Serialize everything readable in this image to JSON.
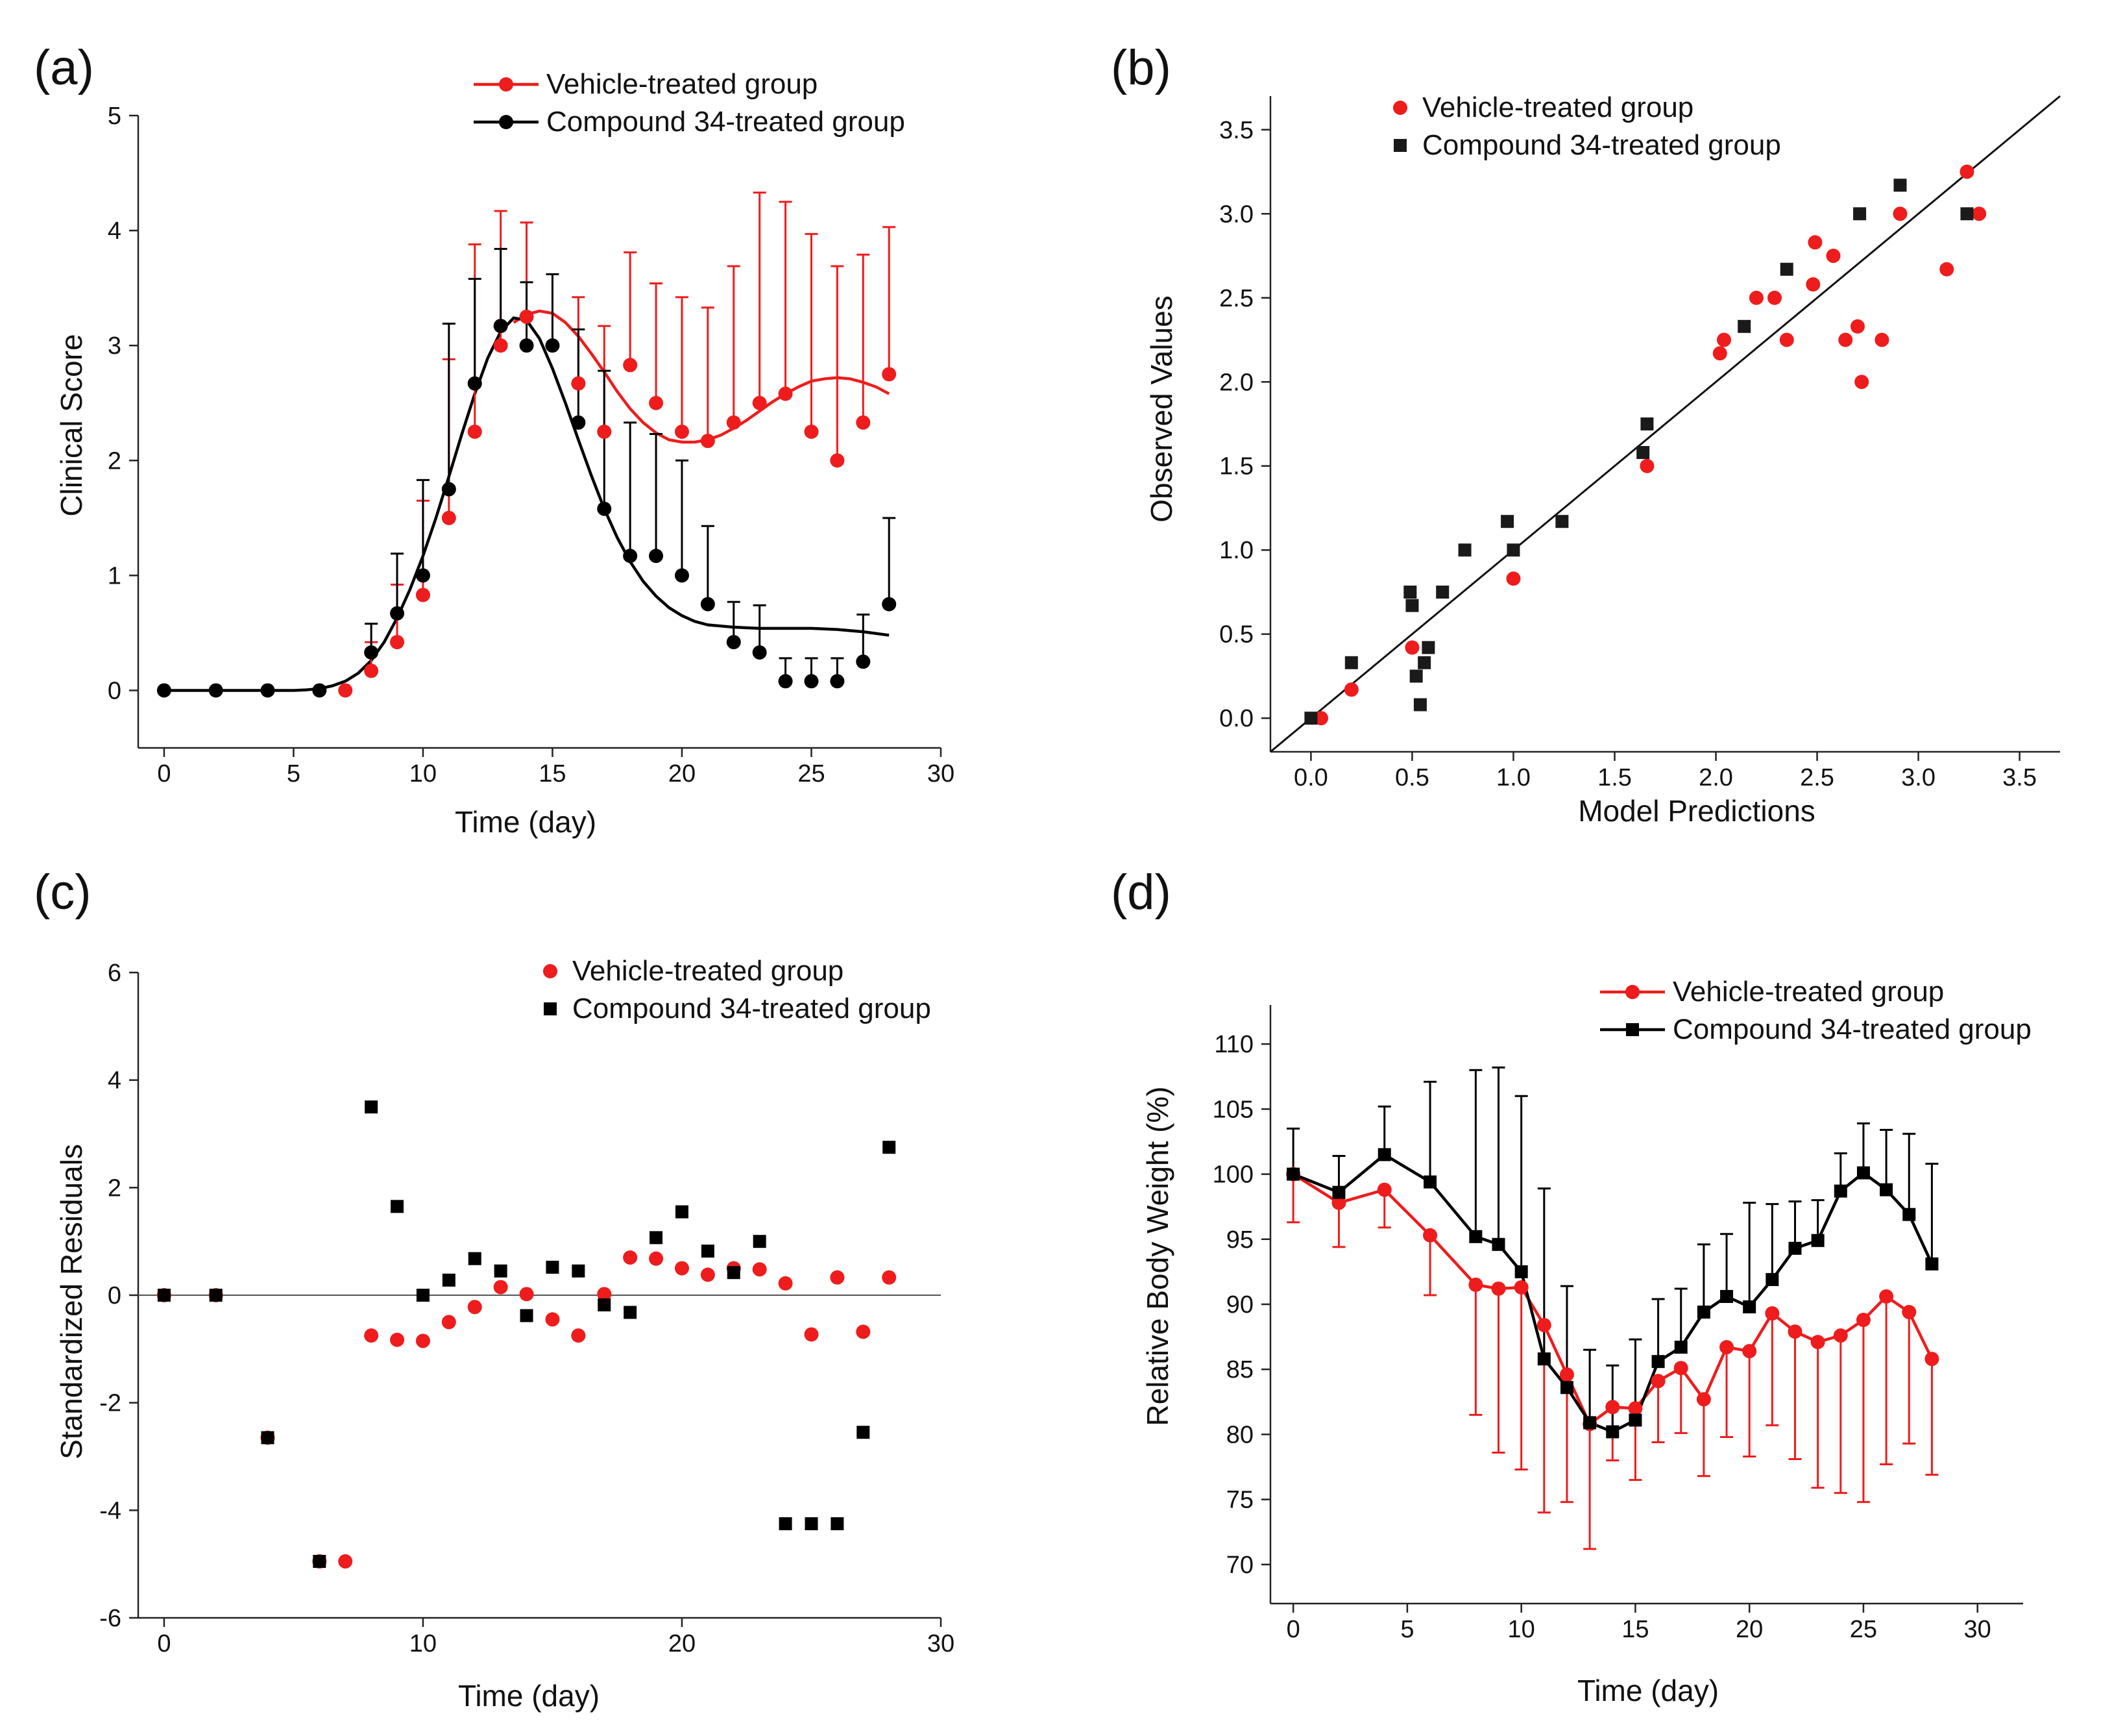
{
  "figure": {
    "colors": {
      "vehicle": "#ee1c1c",
      "compound": "#000000"
    }
  },
  "chart_data": [
    {
      "id": "a",
      "panel_label": "(a)",
      "type": "scatter",
      "xlabel": "Time (day)",
      "ylabel": "Clinical Score",
      "xlim": [
        -1,
        30
      ],
      "ylim": [
        -0.5,
        5
      ],
      "xticks": [
        0,
        5,
        10,
        15,
        20,
        25,
        30
      ],
      "yticks": [
        0,
        1,
        2,
        3,
        4,
        5
      ],
      "legend": [
        "Vehicle-treated group",
        "Compound 34-treated group"
      ],
      "series": [
        {
          "name": "Vehicle-treated group",
          "color": "#ee1c1c",
          "marker": "circle",
          "x": [
            7,
            8,
            9,
            10,
            11,
            12,
            13,
            14,
            16,
            17,
            18,
            19,
            20,
            21,
            22,
            23,
            24,
            25,
            26,
            27,
            28
          ],
          "y": [
            0,
            0.17,
            0.42,
            0.83,
            1.5,
            2.25,
            3.0,
            3.25,
            2.67,
            2.25,
            2.83,
            2.5,
            2.25,
            2.17,
            2.33,
            2.5,
            2.58,
            2.25,
            2.0,
            2.33,
            2.75
          ],
          "err_upper": [
            0,
            0.42,
            0.92,
            1.65,
            2.88,
            3.88,
            4.17,
            4.07,
            3.42,
            3.17,
            3.81,
            3.54,
            3.42,
            3.33,
            3.69,
            4.33,
            4.25,
            3.97,
            3.69,
            3.79,
            4.03
          ]
        },
        {
          "name": "Compound 34-treated group",
          "color": "#000000",
          "marker": "circle",
          "x": [
            0,
            2,
            4,
            6,
            8,
            9,
            10,
            11,
            12,
            13,
            14,
            15,
            16,
            17,
            18,
            19,
            20,
            21,
            22,
            23,
            24,
            25,
            26,
            27,
            28
          ],
          "y": [
            0,
            0,
            0,
            0,
            0.33,
            0.67,
            1.0,
            1.75,
            2.67,
            3.17,
            3.0,
            3.0,
            2.33,
            1.58,
            1.17,
            1.17,
            1.0,
            0.75,
            0.42,
            0.33,
            0.08,
            0.08,
            0.08,
            0.25,
            0.75
          ],
          "err_upper": [
            0,
            0,
            0,
            0,
            0.58,
            1.19,
            1.83,
            3.19,
            3.58,
            3.84,
            3.55,
            3.62,
            3.14,
            2.78,
            2.33,
            2.23,
            2.0,
            1.43,
            0.77,
            0.74,
            0.28,
            0.28,
            0.28,
            0.66,
            1.5
          ]
        }
      ],
      "fit_lines": [
        {
          "name": "Vehicle-treated group fit",
          "color": "#ee1c1c",
          "x": [
            13.5,
            14,
            14.5,
            15,
            15.5,
            16,
            16.5,
            17,
            17.5,
            18,
            18.5,
            19,
            19.5,
            20,
            20.5,
            21,
            21.5,
            22,
            22.5,
            23,
            23.5,
            24,
            24.5,
            25,
            25.5,
            26,
            26.5,
            27,
            27.5,
            28
          ],
          "y": [
            3.2,
            3.27,
            3.3,
            3.28,
            3.2,
            3.08,
            2.93,
            2.77,
            2.6,
            2.45,
            2.33,
            2.24,
            2.18,
            2.16,
            2.16,
            2.18,
            2.22,
            2.28,
            2.35,
            2.43,
            2.51,
            2.58,
            2.64,
            2.69,
            2.71,
            2.72,
            2.71,
            2.68,
            2.64,
            2.58
          ]
        },
        {
          "name": "Compound 34-treated group fit",
          "color": "#000000",
          "x": [
            0,
            1,
            2,
            3,
            4,
            5,
            5.5,
            6,
            6.5,
            7,
            7.5,
            8,
            8.5,
            9,
            9.5,
            10,
            10.5,
            11,
            11.5,
            12,
            12.5,
            13,
            13.5,
            14,
            14.5,
            15,
            15.5,
            16,
            16.5,
            17,
            17.5,
            18,
            18.5,
            19,
            19.5,
            20,
            20.5,
            21,
            22,
            23,
            24,
            25,
            26,
            27,
            28
          ],
          "y": [
            0,
            0,
            0,
            0,
            0,
            0,
            0.005,
            0.015,
            0.04,
            0.08,
            0.15,
            0.26,
            0.42,
            0.63,
            0.88,
            1.17,
            1.5,
            1.86,
            2.23,
            2.58,
            2.89,
            3.12,
            3.24,
            3.22,
            3.06,
            2.8,
            2.5,
            2.18,
            1.87,
            1.58,
            1.33,
            1.12,
            0.95,
            0.82,
            0.72,
            0.65,
            0.6,
            0.57,
            0.55,
            0.54,
            0.54,
            0.54,
            0.53,
            0.51,
            0.48
          ]
        }
      ]
    },
    {
      "id": "b",
      "panel_label": "(b)",
      "type": "scatter",
      "xlabel": "Model Predictions",
      "ylabel": "Observed Values",
      "xlim": [
        -0.2,
        3.7
      ],
      "ylim": [
        -0.2,
        3.7
      ],
      "xticks": [
        0.0,
        0.5,
        1.0,
        1.5,
        2.0,
        2.5,
        3.0,
        3.5
      ],
      "yticks": [
        0.0,
        0.5,
        1.0,
        1.5,
        2.0,
        2.5,
        3.0,
        3.5
      ],
      "legend": [
        "Vehicle-treated group",
        "Compound 34-treated group"
      ],
      "identity_line": true,
      "series": [
        {
          "name": "Vehicle-treated group",
          "color": "#ee1c1c",
          "marker": "circle",
          "x": [
            0.05,
            0.2,
            0.5,
            1.0,
            1.66,
            2.02,
            2.04,
            2.2,
            2.29,
            2.35,
            2.48,
            2.49,
            2.58,
            2.64,
            2.7,
            2.72,
            2.82,
            2.91,
            3.14,
            3.24,
            3.3
          ],
          "y": [
            0.0,
            0.17,
            0.42,
            0.83,
            1.5,
            2.17,
            2.25,
            2.5,
            2.5,
            2.25,
            2.58,
            2.83,
            2.75,
            2.25,
            2.33,
            2.0,
            2.25,
            3.0,
            2.67,
            3.25,
            3.0
          ]
        },
        {
          "name": "Compound 34-treated group",
          "color": "#1a1a1a",
          "marker": "square",
          "x": [
            0.0,
            0.2,
            0.49,
            0.5,
            0.52,
            0.54,
            0.56,
            0.58,
            0.65,
            0.76,
            0.97,
            1.0,
            1.24,
            1.64,
            1.66,
            2.14,
            2.35,
            2.71,
            2.91,
            3.24
          ],
          "y": [
            0.0,
            0.33,
            0.75,
            0.67,
            0.25,
            0.08,
            0.33,
            0.42,
            0.75,
            1.0,
            1.17,
            1.0,
            1.17,
            1.58,
            1.75,
            2.33,
            2.67,
            3.0,
            3.17,
            3.0
          ]
        }
      ]
    },
    {
      "id": "c",
      "panel_label": "(c)",
      "type": "scatter",
      "xlabel": "Time (day)",
      "ylabel": "Standardized Residuals",
      "xlim": [
        -1,
        30
      ],
      "ylim": [
        -6,
        6
      ],
      "xticks": [
        0,
        10,
        20,
        30
      ],
      "yticks": [
        -6,
        -4,
        -2,
        0,
        2,
        4,
        6
      ],
      "legend": [
        "Vehicle-treated group",
        "Compound 34-treated group"
      ],
      "zero_line": true,
      "series": [
        {
          "name": "Vehicle-treated group",
          "color": "#ee1c1c",
          "marker": "circle",
          "x": [
            0,
            2,
            4,
            6,
            7,
            8,
            9,
            10,
            11,
            12,
            13,
            14,
            15,
            16,
            17,
            18,
            19,
            20,
            21,
            22,
            23,
            24,
            25,
            26,
            27,
            28
          ],
          "y": [
            0,
            0,
            -2.65,
            -4.95,
            -4.95,
            -0.75,
            -0.83,
            -0.85,
            -0.5,
            -0.22,
            0.15,
            0.02,
            -0.45,
            -0.75,
            0.02,
            0.7,
            0.68,
            0.5,
            0.38,
            0.5,
            0.48,
            0.22,
            -0.73,
            0.33,
            -0.68,
            0.33
          ]
        },
        {
          "name": "Compound 34-treated group",
          "color": "#000000",
          "marker": "square",
          "x": [
            0,
            2,
            4,
            6,
            8,
            9,
            10,
            11,
            12,
            13,
            14,
            15,
            16,
            17,
            18,
            19,
            20,
            21,
            22,
            23,
            24,
            25,
            26,
            27,
            28
          ],
          "y": [
            0,
            0,
            -2.65,
            -4.95,
            3.5,
            1.65,
            0.0,
            0.28,
            0.68,
            0.45,
            -0.38,
            0.52,
            0.45,
            -0.18,
            -0.32,
            1.07,
            1.55,
            0.82,
            0.42,
            1.0,
            -4.25,
            -4.25,
            -4.25,
            -2.55,
            2.75
          ]
        }
      ]
    },
    {
      "id": "d",
      "panel_label": "(d)",
      "type": "line",
      "xlabel": "Time (day)",
      "ylabel": "Relative Body Weight (%)",
      "xlim": [
        -1,
        32
      ],
      "ylim": [
        67,
        113
      ],
      "xticks": [
        0,
        5,
        10,
        15,
        20,
        25,
        30
      ],
      "yticks": [
        70,
        75,
        80,
        85,
        90,
        95,
        100,
        105,
        110
      ],
      "legend": [
        "Vehicle-treated group",
        "Compound 34-treated group"
      ],
      "series": [
        {
          "name": "Vehicle-treated group",
          "color": "#ee1c1c",
          "marker": "circle",
          "x": [
            0,
            2,
            4,
            6,
            8,
            9,
            10,
            11,
            12,
            13,
            14,
            15,
            16,
            17,
            18,
            19,
            20,
            21,
            22,
            23,
            24,
            25,
            26,
            27,
            28
          ],
          "y": [
            100,
            97.8,
            98.8,
            95.3,
            91.5,
            91.2,
            91.3,
            88.4,
            84.6,
            80.8,
            82.1,
            82.0,
            84.1,
            85.1,
            82.7,
            86.7,
            86.4,
            89.3,
            87.9,
            87.1,
            87.6,
            88.8,
            90.6,
            89.4,
            85.8
          ],
          "err_lower": [
            96.3,
            94.4,
            95.9,
            90.7,
            81.5,
            78.6,
            77.3,
            74.0,
            74.8,
            71.2,
            78.0,
            76.5,
            79.4,
            80.1,
            76.8,
            79.8,
            78.3,
            80.7,
            78.1,
            75.9,
            75.5,
            74.8,
            77.7,
            79.3,
            76.9
          ]
        },
        {
          "name": "Compound 34-treated group",
          "color": "#000000",
          "marker": "square",
          "x": [
            0,
            2,
            4,
            6,
            8,
            9,
            10,
            11,
            12,
            13,
            14,
            15,
            16,
            17,
            18,
            19,
            20,
            21,
            22,
            23,
            24,
            25,
            26,
            27,
            28
          ],
          "y": [
            100,
            98.6,
            101.5,
            99.4,
            95.2,
            94.6,
            92.5,
            85.8,
            83.6,
            80.9,
            80.2,
            81.1,
            85.6,
            86.7,
            89.4,
            90.6,
            89.8,
            91.9,
            94.3,
            94.9,
            98.7,
            100.1,
            98.8,
            96.9,
            93.1
          ],
          "err_upper": [
            103.5,
            101.4,
            105.2,
            107.1,
            108.0,
            108.2,
            106.0,
            98.9,
            91.4,
            86.5,
            85.3,
            87.3,
            90.4,
            91.2,
            94.6,
            95.4,
            97.8,
            97.7,
            97.9,
            98.0,
            101.6,
            103.9,
            103.4,
            103.1,
            100.8
          ]
        }
      ]
    }
  ]
}
